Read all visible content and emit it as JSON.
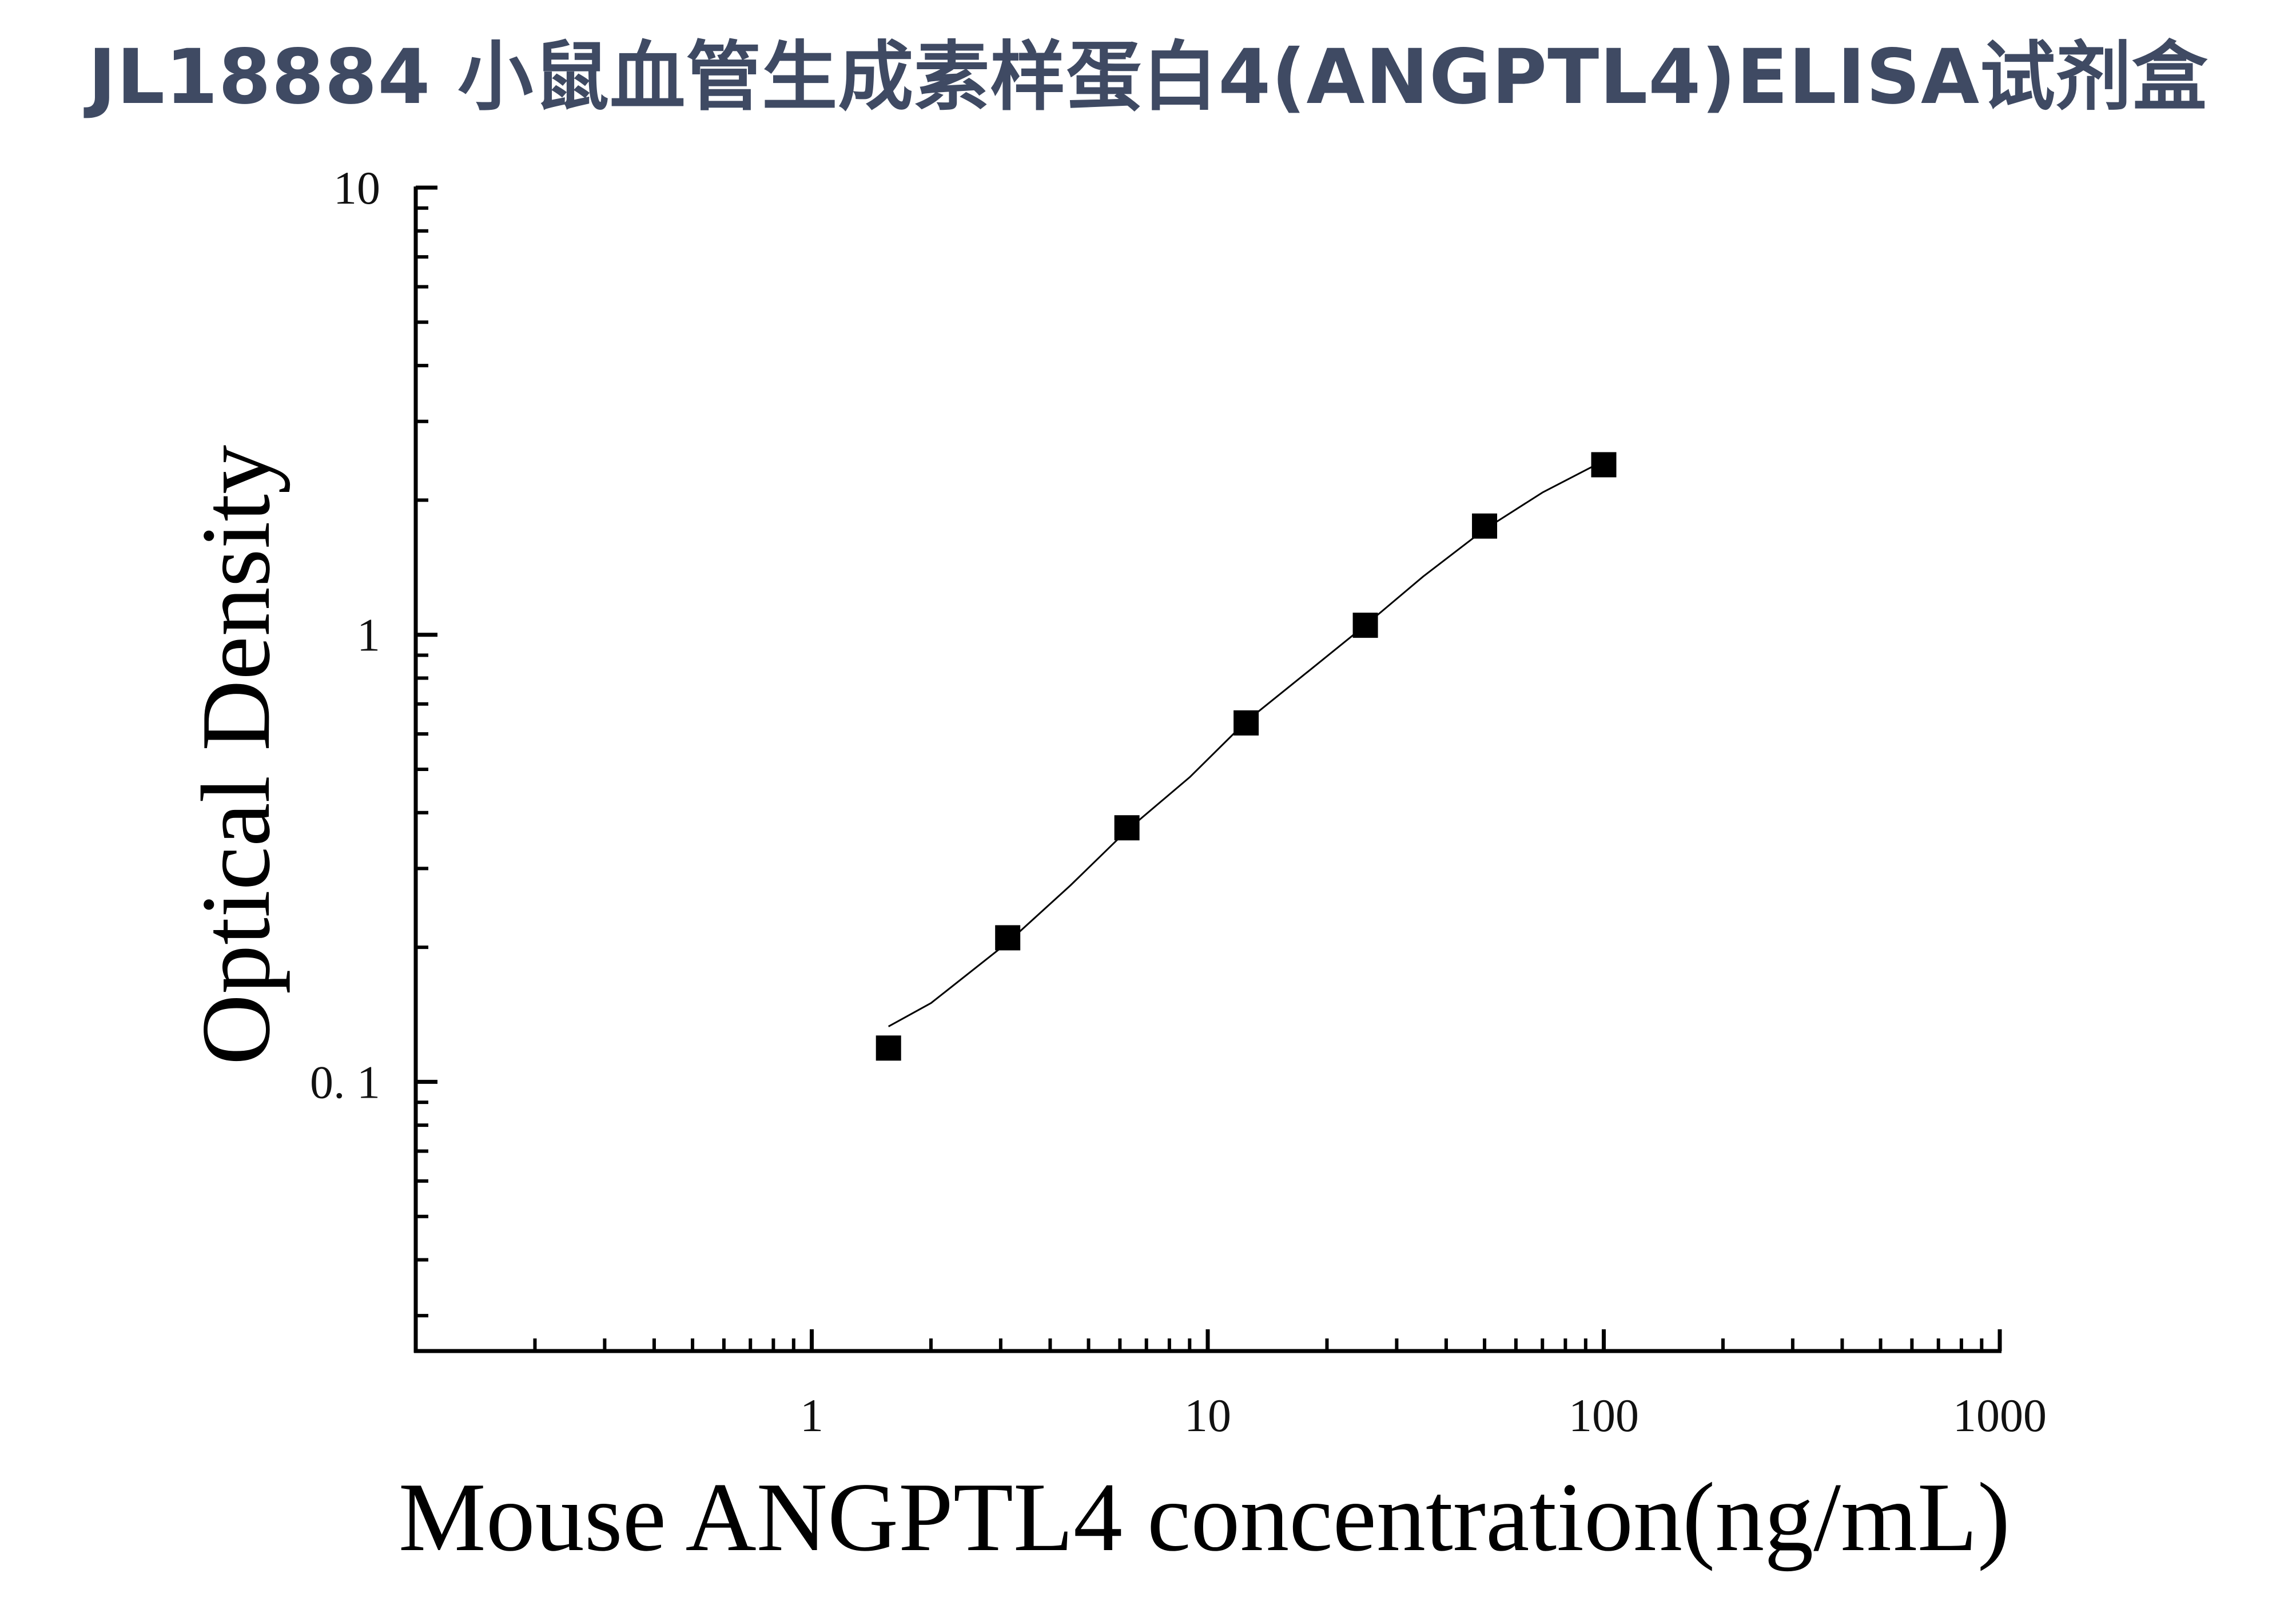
{
  "title": "JL18884 小鼠血管生成素样蛋白4(ANGPTL4)ELISA试剂盒",
  "colors": {
    "title": "#3f4a63",
    "axis": "#000000",
    "marker": "#000000",
    "curve": "#000000"
  },
  "chart_data": {
    "type": "scatter",
    "title": "JL18884 小鼠血管生成素样蛋白4(ANGPTL4)ELISA试剂盒",
    "xlabel": "Mouse ANGPTL4 concentration(ng/mL)",
    "ylabel": "Optical Density",
    "xscale": "log",
    "yscale": "log",
    "xlim": [
      0.1,
      1000
    ],
    "ylim": [
      0.025,
      10
    ],
    "x_ticks": [
      1,
      10,
      100,
      1000
    ],
    "x_tick_labels": [
      "1",
      "10",
      "100",
      "1000"
    ],
    "y_ticks": [
      0.1,
      1,
      10
    ],
    "y_tick_labels": [
      "0. 1",
      "1",
      "10"
    ],
    "grid": false,
    "legend": "none",
    "series": [
      {
        "marker": "square",
        "x": [
          1.5625,
          3.125,
          6.25,
          12.5,
          25,
          50,
          100
        ],
        "y": [
          0.119,
          0.21,
          0.37,
          0.635,
          1.05,
          1.75,
          2.4
        ]
      }
    ],
    "fit_curve": {
      "x": [
        1.5625,
        2,
        3.125,
        4.5,
        6.25,
        9,
        12.5,
        18,
        25,
        35,
        50,
        70,
        100
      ],
      "y": [
        0.133,
        0.15,
        0.205,
        0.275,
        0.365,
        0.48,
        0.64,
        0.83,
        1.05,
        1.35,
        1.72,
        2.08,
        2.45
      ]
    }
  }
}
